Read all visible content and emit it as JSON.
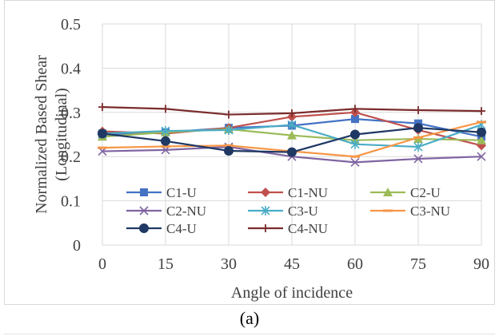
{
  "caption": "(a)",
  "chart_data": {
    "type": "line",
    "title": "",
    "xlabel": "Angle of incidence",
    "ylabel_lines": [
      "Normalized Based Shear",
      "(Longitudinal)"
    ],
    "x": [
      0,
      15,
      30,
      45,
      60,
      75,
      90
    ],
    "x_tick_labels": [
      "0",
      "15",
      "30",
      "45",
      "60",
      "75",
      "90"
    ],
    "ylim": [
      0,
      0.5
    ],
    "y_ticks": [
      0,
      0.1,
      0.2,
      0.3,
      0.4,
      0.5
    ],
    "y_tick_labels": [
      "0",
      "0.1",
      "0.2",
      "0.3",
      "0.4",
      "0.5"
    ],
    "grid": true,
    "legend_position": "inside-bottom",
    "series": [
      {
        "name": "C1-U",
        "color": "#4472C4",
        "marker": "square",
        "values": [
          0.25,
          0.255,
          0.265,
          0.27,
          0.285,
          0.275,
          0.245
        ]
      },
      {
        "name": "C1-NU",
        "color": "#C0504D",
        "marker": "diamond",
        "values": [
          0.257,
          0.252,
          0.265,
          0.29,
          0.3,
          0.26,
          0.225
        ]
      },
      {
        "name": "C2-U",
        "color": "#9BBB59",
        "marker": "triangle",
        "values": [
          0.245,
          0.255,
          0.262,
          0.248,
          0.237,
          0.24,
          0.237
        ]
      },
      {
        "name": "C2-NU",
        "color": "#8064A2",
        "marker": "x",
        "values": [
          0.212,
          0.215,
          0.222,
          0.2,
          0.187,
          0.195,
          0.2
        ]
      },
      {
        "name": "C3-U",
        "color": "#4BACC6",
        "marker": "asterisk",
        "values": [
          0.252,
          0.258,
          0.26,
          0.272,
          0.228,
          0.222,
          0.272
        ]
      },
      {
        "name": "C3-NU",
        "color": "#F79646",
        "marker": "dash",
        "values": [
          0.22,
          0.223,
          0.225,
          0.212,
          0.2,
          0.243,
          0.278
        ]
      },
      {
        "name": "C4-U",
        "color": "#1F3864",
        "marker": "circle",
        "values": [
          0.252,
          0.235,
          0.213,
          0.21,
          0.25,
          0.265,
          0.255
        ]
      },
      {
        "name": "C4-NU",
        "color": "#7B2C2C",
        "marker": "plus",
        "values": [
          0.312,
          0.308,
          0.295,
          0.298,
          0.308,
          0.305,
          0.303
        ]
      }
    ]
  }
}
